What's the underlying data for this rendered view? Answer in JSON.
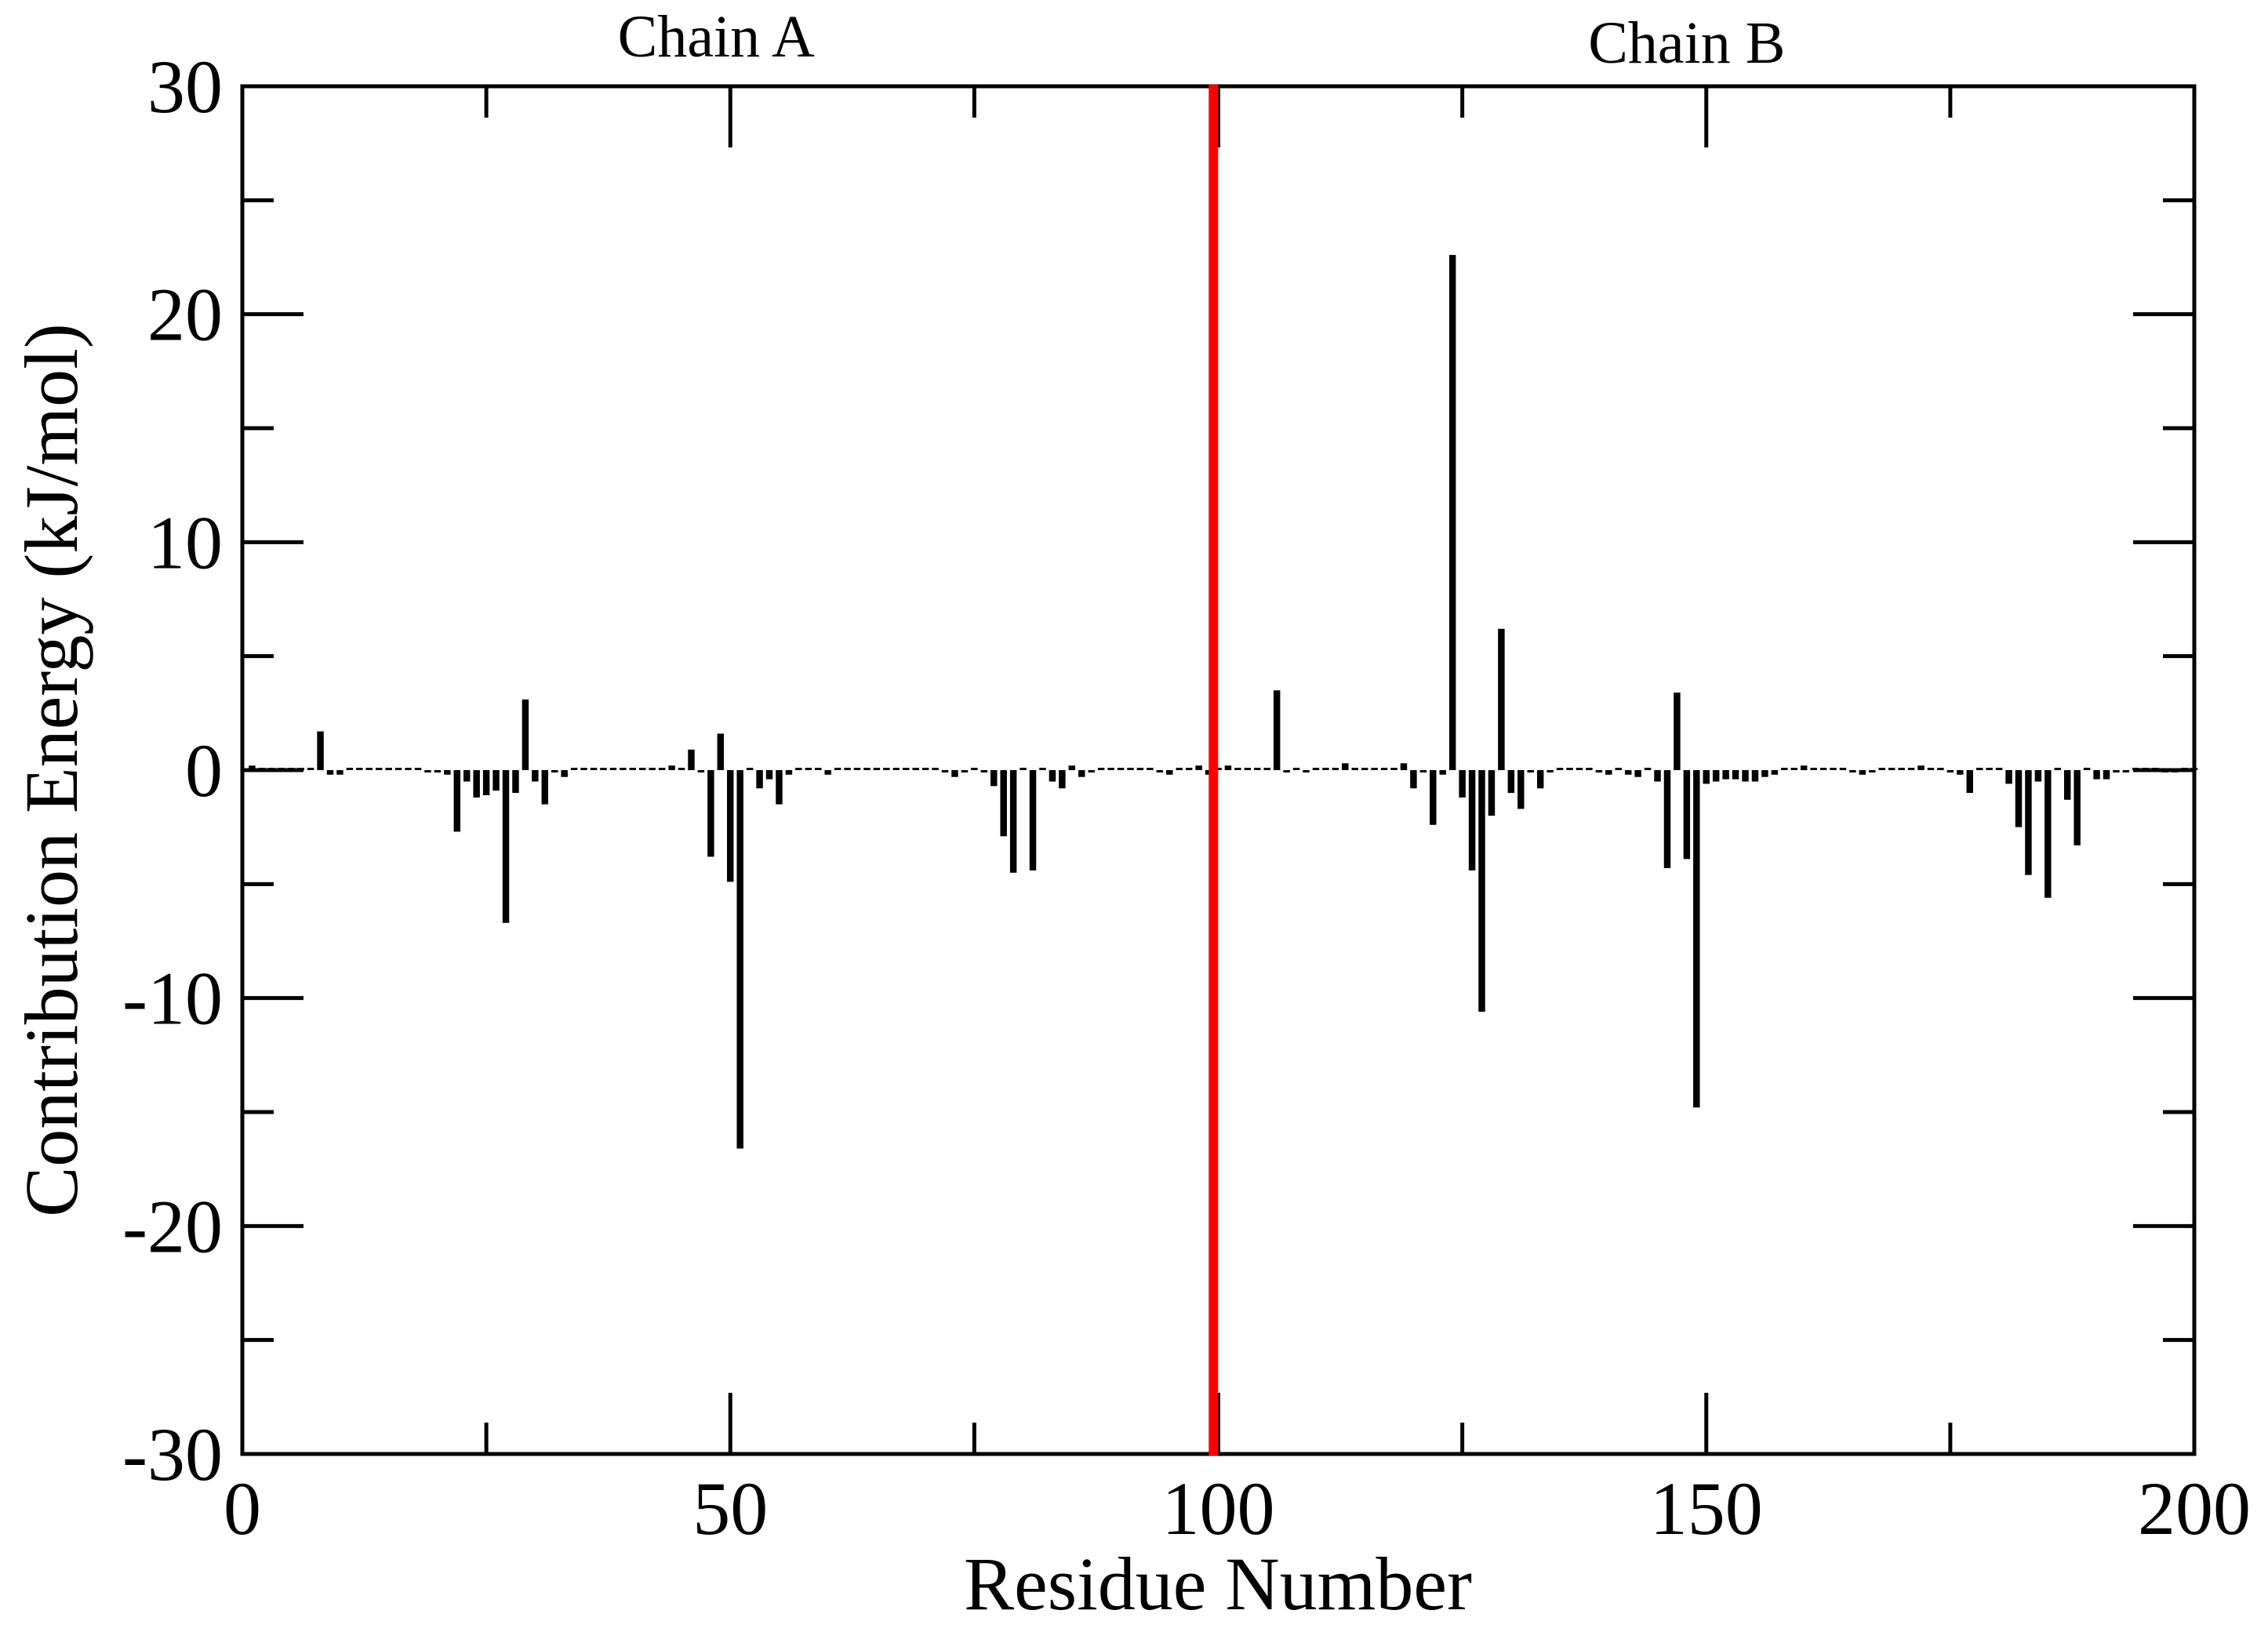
{
  "chart_data": {
    "type": "bar",
    "xlabel": "Residue Number",
    "ylabel": "Contribution Energy (kJ/mol)",
    "xlim": [
      0,
      200
    ],
    "ylim": [
      -30,
      30
    ],
    "x_ticks": [
      0,
      50,
      100,
      150,
      200
    ],
    "x_tick_labels": [
      "0",
      "50",
      "100",
      "150",
      "200"
    ],
    "y_ticks": [
      -30,
      -20,
      -10,
      0,
      10,
      20,
      30
    ],
    "y_tick_labels": [
      "-30",
      "-20",
      "-10",
      "0",
      "10",
      "20",
      "30"
    ],
    "grid": false,
    "annotations": [
      {
        "name": "chain-a-label",
        "text": "Chain A",
        "x": 50
      },
      {
        "name": "chain-b-label",
        "text": "Chain B",
        "x": 148
      }
    ],
    "divider": {
      "x": 99.5,
      "color": "#ff0000"
    },
    "bar_color": "#000000",
    "residues": [
      1,
      2,
      3,
      4,
      5,
      6,
      7,
      8,
      9,
      10,
      11,
      12,
      13,
      14,
      15,
      16,
      17,
      18,
      19,
      20,
      21,
      22,
      23,
      24,
      25,
      26,
      27,
      28,
      29,
      30,
      31,
      32,
      33,
      34,
      35,
      36,
      37,
      38,
      39,
      40,
      41,
      42,
      43,
      44,
      45,
      46,
      47,
      48,
      49,
      50,
      51,
      52,
      53,
      54,
      55,
      56,
      57,
      58,
      59,
      60,
      61,
      62,
      63,
      64,
      65,
      66,
      67,
      68,
      69,
      70,
      71,
      72,
      73,
      74,
      75,
      76,
      77,
      78,
      79,
      80,
      81,
      82,
      83,
      84,
      85,
      86,
      87,
      88,
      89,
      90,
      91,
      92,
      93,
      94,
      95,
      96,
      97,
      98,
      99,
      100,
      101,
      102,
      103,
      104,
      105,
      106,
      107,
      108,
      109,
      110,
      111,
      112,
      113,
      114,
      115,
      116,
      117,
      118,
      119,
      120,
      121,
      122,
      123,
      124,
      125,
      126,
      127,
      128,
      129,
      130,
      131,
      132,
      133,
      134,
      135,
      136,
      137,
      138,
      139,
      140,
      141,
      142,
      143,
      144,
      145,
      146,
      147,
      148,
      149,
      150,
      151,
      152,
      153,
      154,
      155,
      156,
      157,
      158,
      159,
      160,
      161,
      162,
      163,
      164,
      165,
      166,
      167,
      168,
      169,
      170,
      171,
      172,
      173,
      174,
      175,
      176,
      177,
      178,
      179,
      180,
      181,
      182,
      183,
      184,
      185,
      186,
      187,
      188,
      189,
      190,
      191,
      192,
      193,
      194,
      195,
      196,
      197,
      198,
      199,
      200
    ],
    "values": [
      0.2,
      0.1,
      0.1,
      0.1,
      0.1,
      0.1,
      0.1,
      1.7,
      -0.2,
      -0.2,
      0.0,
      0.0,
      0.0,
      0.0,
      0.0,
      0.0,
      0.0,
      0.0,
      -0.1,
      -0.1,
      -0.2,
      -2.7,
      -0.5,
      -1.2,
      -1.1,
      -0.9,
      -6.7,
      -1.0,
      3.1,
      -0.5,
      -1.5,
      -0.1,
      -0.3,
      0.1,
      0.0,
      0.0,
      0.0,
      0.0,
      0.0,
      0.0,
      0.0,
      0.0,
      0.1,
      0.2,
      0.0,
      0.9,
      -0.1,
      -3.8,
      1.6,
      -4.9,
      -16.6,
      0.0,
      -0.8,
      -0.4,
      -1.5,
      -0.2,
      0.0,
      0.0,
      0.0,
      -0.2,
      0.0,
      0.0,
      0.0,
      0.0,
      0.0,
      0.0,
      0.0,
      0.1,
      0.0,
      0.0,
      0.0,
      -0.1,
      -0.3,
      -0.1,
      0.0,
      -0.1,
      -0.7,
      -2.9,
      -4.5,
      0.0,
      -4.4,
      0.1,
      -0.5,
      -0.8,
      0.2,
      -0.3,
      -0.1,
      0.0,
      0.0,
      0.0,
      0.0,
      0.0,
      0.0,
      -0.1,
      -0.2,
      0.0,
      0.0,
      0.2,
      -0.2,
      0.0,
      0.2,
      0.0,
      0.0,
      0.0,
      0.1,
      3.5,
      -0.1,
      0.0,
      -0.1,
      0.0,
      0.0,
      0.0,
      0.3,
      0.0,
      0.1,
      0.0,
      0.0,
      0.0,
      0.3,
      -0.8,
      -0.1,
      -2.4,
      -0.2,
      22.6,
      -1.2,
      -4.4,
      -10.6,
      -2.0,
      6.2,
      -1.0,
      -1.7,
      -0.1,
      -0.8,
      -0.1,
      0.0,
      0.0,
      0.0,
      0.0,
      -0.1,
      -0.2,
      0.0,
      -0.2,
      -0.3,
      0.0,
      -0.5,
      -4.3,
      3.4,
      -3.9,
      -14.8,
      -0.6,
      -0.5,
      -0.4,
      -0.4,
      -0.5,
      -0.5,
      -0.3,
      -0.2,
      0.0,
      0.0,
      0.2,
      0.0,
      0.1,
      0.0,
      0.0,
      -0.1,
      -0.2,
      -0.1,
      0.0,
      0.0,
      0.0,
      0.1,
      0.2,
      0.0,
      0.0,
      -0.1,
      -0.2,
      -1.0,
      0.0,
      0.0,
      0.0,
      -0.6,
      -2.5,
      -4.6,
      -0.5,
      -5.6,
      0.1,
      -1.3,
      -3.3,
      0.1,
      -0.4,
      -0.4,
      -0.1,
      -0.1,
      0.0,
      0.0,
      0.0,
      -0.1,
      -0.1,
      0.0,
      0.0
    ]
  }
}
